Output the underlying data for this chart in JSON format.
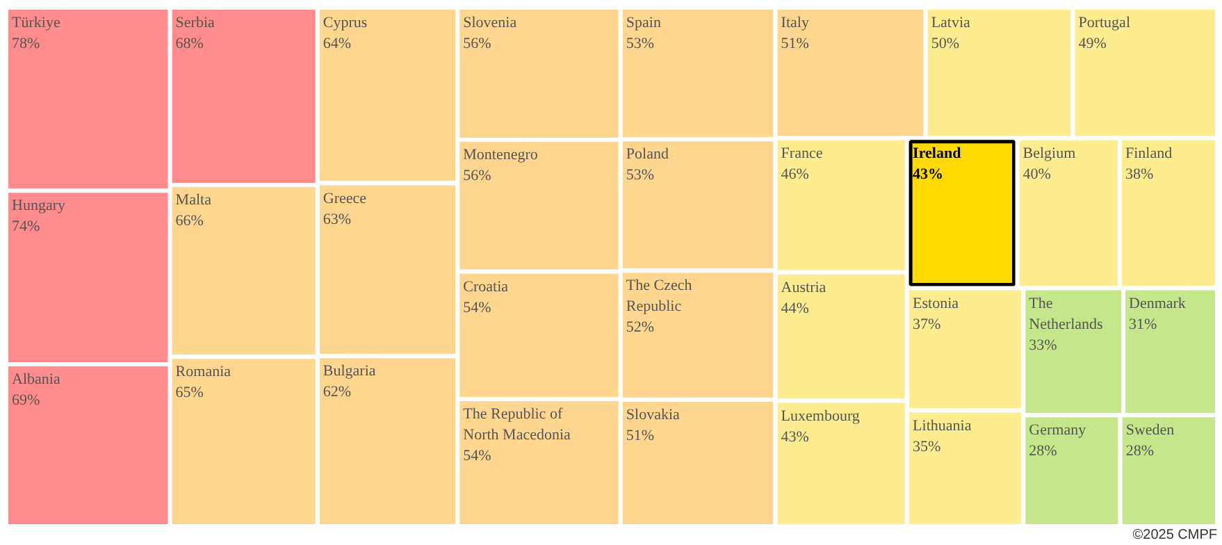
{
  "chart_data": {
    "type": "other",
    "categories": [
      "Türkiye",
      "Hungary",
      "Albania",
      "Serbia",
      "Malta",
      "Romania",
      "Cyprus",
      "Greece",
      "Bulgaria",
      "Slovenia",
      "Montenegro",
      "Croatia",
      "The Republic of North Macedonia",
      "Spain",
      "Poland",
      "The Czech Republic",
      "Slovakia",
      "Italy",
      "Latvia",
      "Portugal",
      "France",
      "Austria",
      "Luxembourg",
      "Ireland",
      "Belgium",
      "Finland",
      "Estonia",
      "Lithuania",
      "The Netherlands",
      "Denmark",
      "Germany",
      "Sweden"
    ],
    "values": [
      78,
      74,
      69,
      68,
      66,
      65,
      64,
      63,
      62,
      56,
      56,
      54,
      54,
      53,
      53,
      52,
      51,
      51,
      50,
      49,
      46,
      44,
      43,
      43,
      40,
      38,
      37,
      35,
      33,
      31,
      28,
      28
    ],
    "value_labels": [
      "78%",
      "74%",
      "69%",
      "68%",
      "66%",
      "65%",
      "64%",
      "63%",
      "62%",
      "56%",
      "56%",
      "54%",
      "54%",
      "53%",
      "53%",
      "52%",
      "51%",
      "51%",
      "50%",
      "49%",
      "46%",
      "44%",
      "43%",
      "43%",
      "40%",
      "38%",
      "37%",
      "35%",
      "33%",
      "31%",
      "28%",
      "28%"
    ],
    "colors": [
      "#ff8c8c",
      "#ff8c8c",
      "#ff8c8c",
      "#ff8c8c",
      "#ffd68f",
      "#ffd68f",
      "#ffd68f",
      "#ffd68f",
      "#ffd68f",
      "#ffd68f",
      "#ffd68f",
      "#ffd68f",
      "#ffd68f",
      "#ffd68f",
      "#ffd68f",
      "#ffd68f",
      "#ffd68f",
      "#ffd68f",
      "#fdec90",
      "#fdec90",
      "#fdec90",
      "#fdec90",
      "#fdec90",
      "#ffd900",
      "#fdec90",
      "#fdec90",
      "#fdec90",
      "#fdec90",
      "#c6e68c",
      "#c6e68c",
      "#c6e68c",
      "#c6e68c"
    ],
    "annotations": [
      "©2025 CMPF"
    ]
  }
}
